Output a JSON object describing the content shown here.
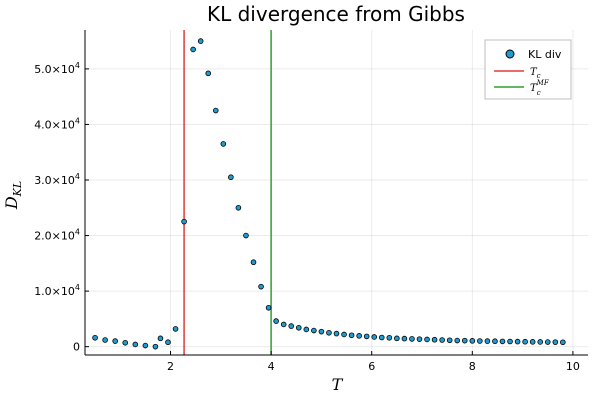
{
  "chart_data": {
    "type": "scatter",
    "title": "KL divergence from Gibbs",
    "xlabel": "T",
    "ylabel_main": "D",
    "ylabel_sub": "KL",
    "xlim": [
      0.3,
      10.3
    ],
    "ylim": [
      -1500,
      57000
    ],
    "x_ticks": [
      2,
      4,
      6,
      8,
      10
    ],
    "x_tick_labels": [
      "2",
      "4",
      "6",
      "8",
      "10"
    ],
    "y_ticks": [
      0,
      10000,
      20000,
      30000,
      40000,
      50000
    ],
    "y_tick_labels": [
      {
        "mantissa": "0",
        "exp": ""
      },
      {
        "mantissa": "1.0×10",
        "exp": "4"
      },
      {
        "mantissa": "2.0×10",
        "exp": "4"
      },
      {
        "mantissa": "3.0×10",
        "exp": "4"
      },
      {
        "mantissa": "4.0×10",
        "exp": "4"
      },
      {
        "mantissa": "5.0×10",
        "exp": "4"
      }
    ],
    "grid": true,
    "legend_position": "top-right",
    "series": [
      {
        "name": "KL div",
        "color": "#1f9bd1",
        "x": [
          0.5,
          0.7,
          0.9,
          1.1,
          1.3,
          1.5,
          1.7,
          1.8,
          1.95,
          2.1,
          2.27,
          2.45,
          2.6,
          2.75,
          2.9,
          3.05,
          3.2,
          3.35,
          3.5,
          3.65,
          3.8,
          3.95,
          4.1,
          4.25,
          4.4,
          4.55,
          4.7,
          4.85,
          5.0,
          5.15,
          5.3,
          5.45,
          5.6,
          5.75,
          5.9,
          6.05,
          6.2,
          6.35,
          6.5,
          6.65,
          6.8,
          6.95,
          7.1,
          7.25,
          7.4,
          7.55,
          7.7,
          7.85,
          8.0,
          8.15,
          8.3,
          8.45,
          8.6,
          8.75,
          8.9,
          9.05,
          9.2,
          9.35,
          9.5,
          9.65,
          9.8
        ],
        "y": [
          1600,
          1200,
          1000,
          700,
          400,
          200,
          0,
          1500,
          800,
          3200,
          22500,
          53500,
          55000,
          49200,
          42500,
          36500,
          30500,
          25000,
          20000,
          15200,
          10800,
          7000,
          4600,
          4000,
          3700,
          3400,
          3100,
          2900,
          2700,
          2500,
          2350,
          2200,
          2050,
          1950,
          1850,
          1750,
          1650,
          1600,
          1500,
          1450,
          1400,
          1350,
          1300,
          1250,
          1200,
          1150,
          1100,
          1080,
          1050,
          1020,
          1000,
          980,
          950,
          930,
          910,
          890,
          870,
          850,
          830,
          810,
          790
        ]
      }
    ],
    "vlines": [
      {
        "name_main": "T",
        "name_sub": "c",
        "name_sup": "",
        "x": 2.27,
        "color": "#e33a3a"
      },
      {
        "name_main": "T",
        "name_sub": "c",
        "name_sup": "MF",
        "x": 4.0,
        "color": "#2ea02e"
      }
    ]
  }
}
